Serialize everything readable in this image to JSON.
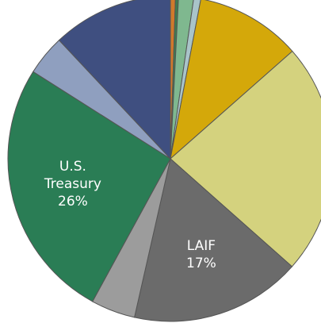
{
  "chart_data": {
    "type": "pie",
    "categories": [
      null,
      null,
      null,
      null,
      null,
      null,
      "LAIF",
      null,
      "U.S. Treasury",
      null,
      null
    ],
    "values": [
      0.5,
      0.3,
      1.5,
      0.7,
      10.5,
      23,
      17,
      4.4,
      26,
      4,
      12
    ],
    "value_labels": [
      null,
      null,
      null,
      null,
      null,
      null,
      "17%",
      null,
      "26%",
      null,
      null
    ],
    "colors": [
      "#d07a2c",
      "#3e7d4f",
      "#7fb88f",
      "#a9c4c9",
      "#d4a80a",
      "#d4d27e",
      "#6b6b6b",
      "#9c9c9c",
      "#2a7d55",
      "#8f9fbf",
      "#3f4f80"
    ]
  }
}
